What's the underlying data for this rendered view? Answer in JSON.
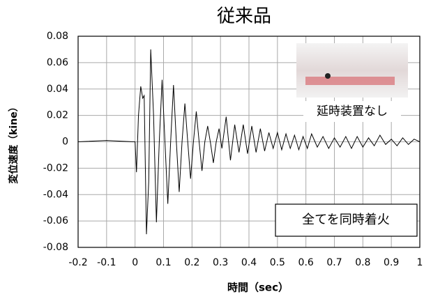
{
  "chart_data": {
    "type": "line",
    "title": "従来品",
    "x_label": "時間（sec）",
    "y_label": "変位速度（kine）",
    "annotations": [
      "延時装置なし",
      "全てを同時着火"
    ],
    "color": "#000000",
    "grid": true,
    "xlim": [
      -0.2,
      1
    ],
    "xticks": [
      -0.2,
      -0.1,
      0,
      0.1,
      0.2,
      0.3,
      0.4,
      0.5,
      0.6,
      0.7,
      0.8,
      0.9,
      1
    ],
    "ylim": [
      -0.08,
      0.08
    ],
    "yticks": [
      0.08,
      0.06,
      0.04,
      0.02,
      0,
      -0.02,
      -0.04,
      -0.06,
      -0.08
    ],
    "x": [
      -0.2,
      -0.1,
      -0.005,
      0,
      0.005,
      0.012,
      0.02,
      0.027,
      0.032,
      0.04,
      0.048,
      0.055,
      0.065,
      0.075,
      0.085,
      0.095,
      0.105,
      0.115,
      0.125,
      0.135,
      0.145,
      0.155,
      0.165,
      0.175,
      0.185,
      0.195,
      0.205,
      0.215,
      0.225,
      0.235,
      0.245,
      0.255,
      0.265,
      0.275,
      0.285,
      0.295,
      0.305,
      0.32,
      0.335,
      0.35,
      0.365,
      0.38,
      0.395,
      0.41,
      0.425,
      0.44,
      0.455,
      0.47,
      0.485,
      0.5,
      0.515,
      0.53,
      0.545,
      0.56,
      0.575,
      0.59,
      0.605,
      0.62,
      0.64,
      0.66,
      0.68,
      0.7,
      0.72,
      0.74,
      0.76,
      0.78,
      0.8,
      0.82,
      0.84,
      0.86,
      0.88,
      0.9,
      0.92,
      0.94,
      0.96,
      0.98,
      1
    ],
    "values": [
      0,
      0.001,
      0,
      0,
      -0.023,
      0.02,
      0.042,
      0.033,
      0.035,
      -0.07,
      -0.03,
      0.07,
      0.02,
      -0.061,
      0,
      0.047,
      0,
      -0.047,
      0,
      0.043,
      0,
      -0.038,
      0,
      0.029,
      0,
      -0.028,
      0,
      0.023,
      0,
      -0.022,
      0,
      0.012,
      -0.001,
      -0.016,
      0,
      0.01,
      -0.005,
      0.019,
      -0.014,
      0.013,
      -0.008,
      0.013,
      -0.009,
      0.012,
      -0.008,
      0.01,
      -0.007,
      0.007,
      -0.005,
      0.007,
      -0.006,
      0.006,
      -0.005,
      0.005,
      -0.006,
      0.004,
      -0.005,
      0.006,
      -0.004,
      0.004,
      -0.005,
      0.003,
      -0.004,
      0.004,
      -0.005,
      0.004,
      -0.004,
      0.003,
      -0.003,
      0.005,
      -0.002,
      0.002,
      -0.003,
      0.003,
      -0.002,
      0.002,
      0
    ]
  }
}
